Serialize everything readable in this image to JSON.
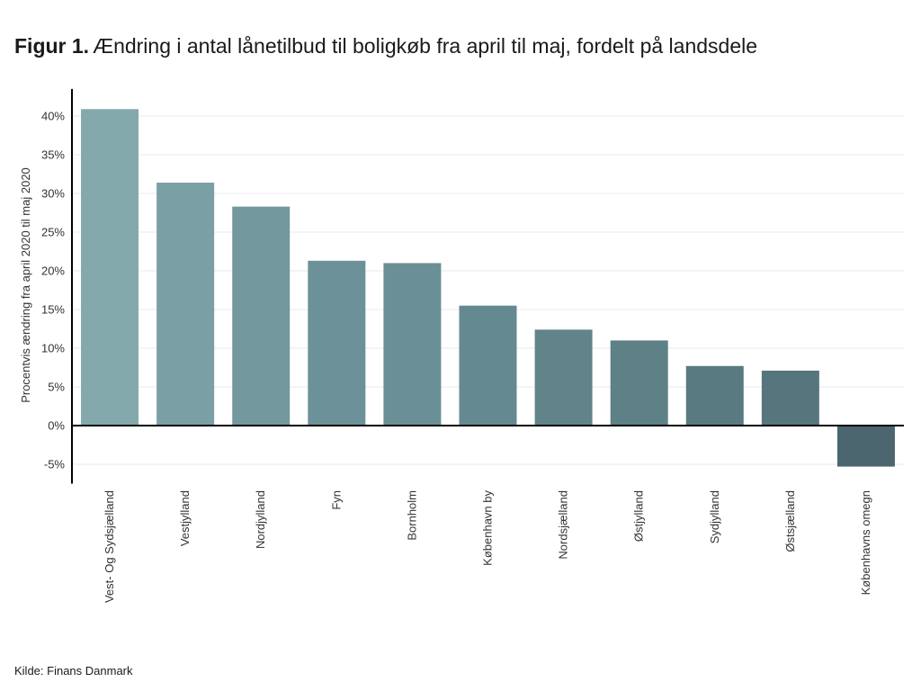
{
  "title": {
    "prefix": "Figur 1.",
    "text": "Ændring i antal lånetilbud til boligkøb fra april til maj, fordelt på landsdele"
  },
  "source": "Kilde: Finans Danmark",
  "chart_data": {
    "type": "bar",
    "title": "Ændring i antal lånetilbud til boligkøb fra april til maj, fordelt på landsdele",
    "xlabel": "",
    "ylabel": "Procentvis ændring fra april 2020 til maj 2020",
    "categories": [
      "Vest- Og Sydsjælland",
      "Vestjylland",
      "Nordjylland",
      "Fyn",
      "Bornholm",
      "København by",
      "Nordsjælland",
      "Østjylland",
      "Sydjylland",
      "Østsjælland",
      "Københavns omegn"
    ],
    "values": [
      40.9,
      31.4,
      28.3,
      21.3,
      21.0,
      15.5,
      12.4,
      11.0,
      7.7,
      7.1,
      -5.3
    ],
    "ylim": [
      -7.5,
      43.5
    ],
    "yticks": [
      -5,
      0,
      5,
      10,
      15,
      20,
      25,
      30,
      35,
      40
    ],
    "ytick_labels": [
      "-5%",
      "0%",
      "5%",
      "10%",
      "15%",
      "20%",
      "25%",
      "30%",
      "35%",
      "40%"
    ],
    "grid": true,
    "legend": "none",
    "colors": [
      "#84a9ad",
      "#7aa0a6",
      "#73989e",
      "#6d9198",
      "#6b8f96",
      "#658990",
      "#61848b",
      "#5e8087",
      "#5a7a81",
      "#56757c",
      "#4c6670"
    ]
  }
}
